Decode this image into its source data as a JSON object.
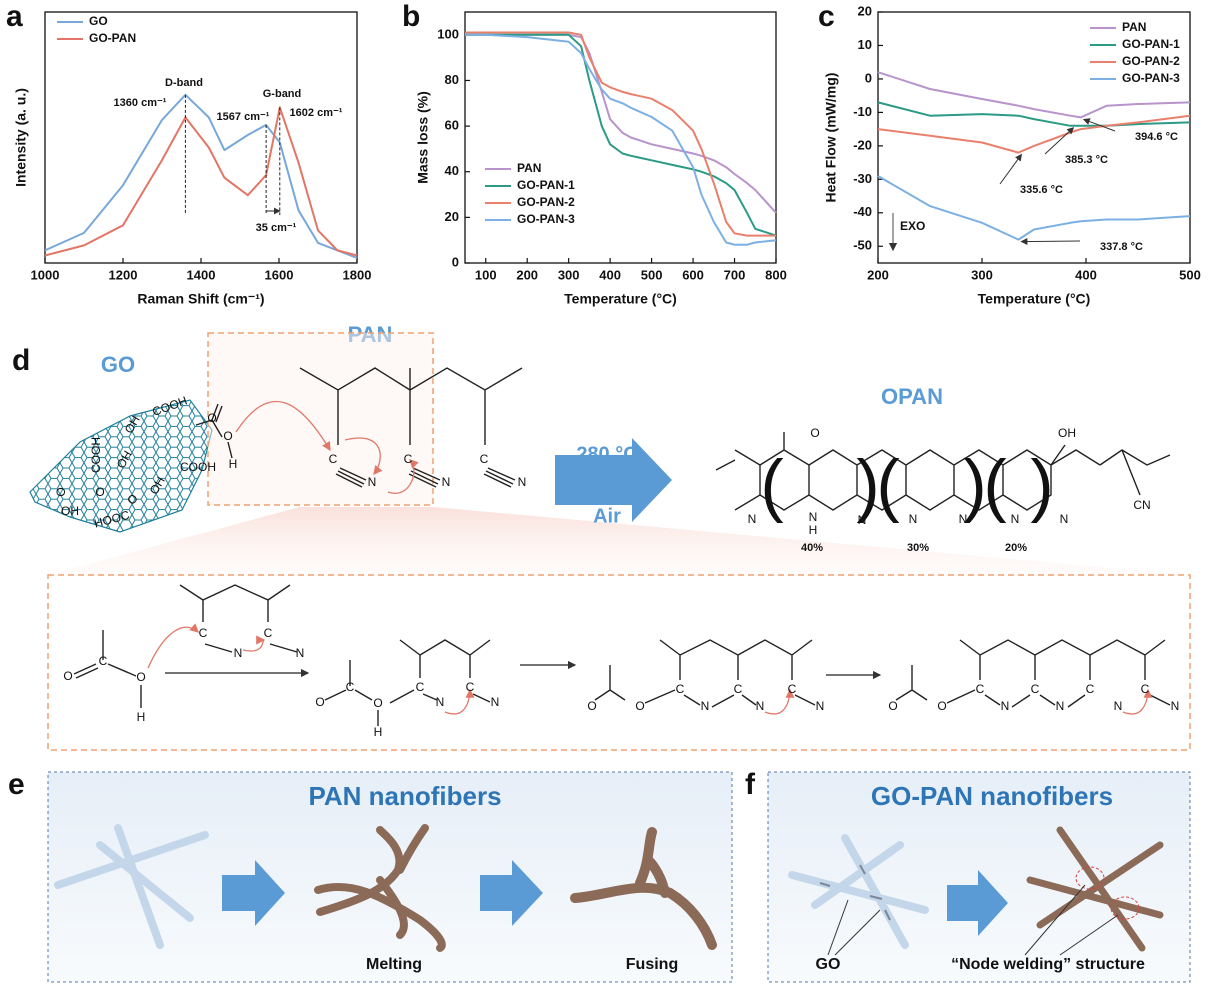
{
  "chart_data": [
    {
      "type": "line",
      "panel": "a",
      "xlabel": "Raman Shift (cm⁻¹)",
      "ylabel": "Intensity (a. u.)",
      "x": [
        1000,
        1100,
        1200,
        1300,
        1360,
        1420,
        1460,
        1520,
        1567,
        1602,
        1650,
        1700,
        1750,
        1800
      ],
      "series": [
        {
          "name": "GO",
          "color": "#78a8da",
          "values": [
            5,
            12,
            31,
            57,
            67,
            58,
            45,
            51,
            55,
            48,
            21,
            8,
            5,
            2
          ]
        },
        {
          "name": "GO-PAN",
          "color": "#e27565",
          "values": [
            3,
            7,
            15,
            41,
            58,
            46,
            34,
            27,
            35,
            62,
            40,
            13,
            5,
            3
          ]
        }
      ],
      "xlim": [
        1000,
        1800
      ],
      "xticks": [
        1000,
        1200,
        1400,
        1600,
        1800
      ],
      "ylim": [
        0,
        100
      ],
      "legend": "upper left",
      "annotations": [
        "D-band",
        "G-band",
        "1360 cm⁻¹",
        "1567 cm⁻¹",
        "1602 cm⁻¹",
        "35 cm⁻¹"
      ]
    },
    {
      "type": "line",
      "panel": "b",
      "xlabel": "Temperature (°C)",
      "ylabel": "Mass loss (%)",
      "x": [
        50,
        100,
        200,
        300,
        330,
        350,
        380,
        400,
        430,
        450,
        500,
        550,
        600,
        620,
        650,
        680,
        700,
        730,
        750,
        800
      ],
      "series": [
        {
          "name": "PAN",
          "color": "#b893cc",
          "values": [
            100,
            100,
            100,
            100,
            99,
            92,
            75,
            63,
            57,
            55,
            52,
            50,
            48,
            47,
            45,
            42,
            39,
            35,
            32,
            22
          ]
        },
        {
          "name": "GO-PAN-1",
          "color": "#2b9a86",
          "values": [
            100,
            100,
            100,
            100,
            95,
            80,
            60,
            52,
            48,
            47,
            45,
            43,
            41,
            40,
            38,
            35,
            32,
            22,
            15,
            12
          ]
        },
        {
          "name": "GO-PAN-2",
          "color": "#e8806c",
          "values": [
            101,
            101,
            101,
            101,
            100,
            90,
            79,
            77,
            75,
            74,
            72,
            67,
            58,
            50,
            35,
            18,
            13,
            12,
            12,
            12
          ]
        },
        {
          "name": "GO-PAN-3",
          "color": "#7cb0e2",
          "values": [
            100,
            100,
            99,
            97,
            92,
            85,
            76,
            72,
            70,
            68,
            64,
            58,
            42,
            30,
            18,
            9,
            8,
            8,
            9,
            10
          ]
        }
      ],
      "xlim": [
        50,
        800
      ],
      "xticks": [
        100,
        200,
        300,
        400,
        500,
        600,
        700,
        800
      ],
      "ylim": [
        0,
        110
      ],
      "yticks": [
        0,
        20,
        40,
        60,
        80,
        100
      ],
      "legend": "lower left"
    },
    {
      "type": "line",
      "panel": "c",
      "xlabel": "Temperature (°C)",
      "ylabel": "Heat Flow (mW/mg)",
      "x": [
        200,
        250,
        300,
        335,
        350,
        385,
        395,
        420,
        450,
        500
      ],
      "series": [
        {
          "name": "PAN",
          "color": "#b893cc",
          "values": [
            2,
            -3,
            -6,
            -8,
            -9,
            -11,
            -11.5,
            -8,
            -7.5,
            -7
          ]
        },
        {
          "name": "GO-PAN-1",
          "color": "#2b9a86",
          "values": [
            -7,
            -11,
            -10.5,
            -11,
            -12,
            -14,
            -14,
            -14,
            -13.5,
            -13
          ]
        },
        {
          "name": "GO-PAN-2",
          "color": "#e8806c",
          "values": [
            -15,
            -17,
            -19,
            -22,
            -20,
            -16,
            -15,
            -14,
            -13,
            -11
          ]
        },
        {
          "name": "GO-PAN-3",
          "color": "#7cb0e2",
          "values": [
            -29,
            -38,
            -43,
            -48,
            -45,
            -43,
            -42.5,
            -42,
            -42,
            -41
          ]
        }
      ],
      "xlim": [
        200,
        500
      ],
      "xticks": [
        200,
        300,
        400,
        500
      ],
      "ylim": [
        -55,
        20
      ],
      "yticks": [
        -50,
        -40,
        -30,
        -20,
        -10,
        0,
        10,
        20
      ],
      "legend": "upper right",
      "annotations": [
        "394.6 °C",
        "385.3 °C",
        "335.6 °C",
        "337.8 °C",
        "EXO"
      ]
    }
  ],
  "diagram": {
    "panel_d": "d",
    "go": "GO",
    "pan": "PAN",
    "opan": "OPAN",
    "temperature": "280 °C",
    "gas": "Air",
    "fractions": [
      "40%",
      "30%",
      "20%"
    ],
    "atoms": [
      "COOH",
      "OH",
      "COOH",
      "OH",
      "COOH",
      "OH",
      "O",
      "O",
      "HOOC",
      "OH",
      "O",
      "O",
      "O",
      "H",
      "C",
      "N",
      "C",
      "N",
      "C",
      "N",
      "O",
      "OH",
      "N",
      "N",
      "H",
      "N",
      "N",
      "N",
      "N",
      "N",
      "CN",
      "O",
      "C",
      "O",
      "H",
      "C",
      "N",
      "C",
      "N",
      "O",
      "C",
      "O",
      "H",
      "C",
      "N",
      "C",
      "N",
      "O",
      "O",
      "C",
      "N",
      "C",
      "N",
      "C",
      "N",
      "O",
      "O",
      "C",
      "N",
      "C",
      "N",
      "C",
      "N",
      "C",
      "N"
    ],
    "panel_e": "e",
    "panel_f": "f",
    "e_title": "PAN nanofibers",
    "melting": "Melting",
    "fusing": "Fusing",
    "f_title": "GO-PAN nanofibers",
    "go_note": "GO",
    "node_note": "“Node welding” structure"
  }
}
